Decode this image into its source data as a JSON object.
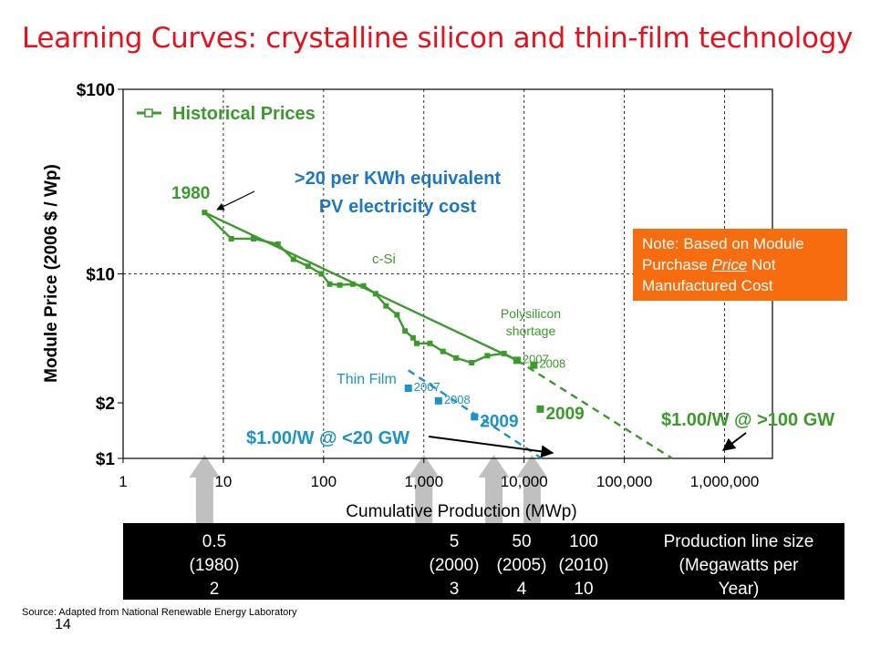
{
  "title": "Learning Curves: crystalline silicon and thin-film technology",
  "note": {
    "line1": "Note: Based on Module",
    "line2_pre": "Purchase ",
    "line2_em": "Price",
    "line2_post": " Not",
    "line3": "Manufactured Cost"
  },
  "source": "Source: Adapted from National Renewable Energy Laboratory",
  "page_number": "14",
  "production_line": {
    "columns": [
      {
        "lines": [
          "0.5",
          "(1980)",
          "2"
        ]
      },
      {
        "lines": [
          "5",
          "(2000)",
          "3"
        ]
      },
      {
        "lines": [
          "50",
          "(2005)",
          "4"
        ]
      },
      {
        "lines": [
          "100",
          "(2010)",
          "10"
        ]
      }
    ],
    "caption": [
      "Production line size",
      "(Megawatts per",
      "Year)"
    ]
  },
  "chart_data": {
    "type": "line",
    "x_scale": "log",
    "y_scale": "log",
    "xlim": [
      1,
      3000000
    ],
    "ylim": [
      1,
      100
    ],
    "xlabel": "Cumulative Production (MWp)",
    "ylabel": "Module Price (2006 $ / Wp)",
    "x_ticks": [
      {
        "value": 1,
        "label": "1"
      },
      {
        "value": 10,
        "label": "10"
      },
      {
        "value": 100,
        "label": "100"
      },
      {
        "value": 1000,
        "label": "1,000"
      },
      {
        "value": 10000,
        "label": "10,000"
      },
      {
        "value": 100000,
        "label": "100,000"
      },
      {
        "value": 1000000,
        "label": "1,000,000"
      }
    ],
    "y_ticks": [
      {
        "value": 1,
        "label": "$1"
      },
      {
        "value": 2,
        "label": "$2"
      },
      {
        "value": 10,
        "label": "$10"
      },
      {
        "value": 100,
        "label": "$100"
      }
    ],
    "grid": "dashed at major ticks",
    "legend": {
      "position": "top-left",
      "entries": [
        "Historical Prices"
      ]
    },
    "colors": {
      "historical": "#3a9a2a",
      "thin_film": "#1a93c8",
      "title": "#e8101a",
      "note_bg": "#f76c0e",
      "arrow": "#c0c0c0"
    },
    "series": [
      {
        "name": "Historical Prices",
        "x": [
          6.5,
          12,
          20,
          35,
          50,
          70,
          95,
          115,
          145,
          195,
          250,
          330,
          420,
          540,
          650,
          780,
          850,
          1150,
          1550,
          2100,
          3000,
          4300,
          6300,
          8500
        ],
        "y": [
          21.5,
          15.5,
          15.5,
          14.5,
          12.0,
          11.0,
          10.0,
          8.8,
          8.7,
          8.8,
          8.6,
          7.8,
          6.7,
          6.0,
          4.9,
          4.5,
          4.2,
          4.2,
          3.8,
          3.5,
          3.3,
          3.6,
          3.7,
          3.4
        ]
      },
      {
        "name": "c-Si trend",
        "x": [
          6.5,
          8500
        ],
        "y": [
          21.5,
          3.4
        ]
      },
      {
        "name": "c-Si projection",
        "x": [
          8500,
          300000
        ],
        "y": [
          3.4,
          1.0
        ]
      },
      {
        "name": "Thin Film projection",
        "x": [
          700,
          15000
        ],
        "y": [
          3.0,
          1.0
        ]
      }
    ],
    "markers": [
      {
        "label": "2007",
        "x": 8500,
        "y": 3.4,
        "color": "#3a9a2a"
      },
      {
        "label": "2008",
        "x": 12500,
        "y": 3.2,
        "color": "#3a9a2a"
      },
      {
        "label": "2009",
        "x": 14500,
        "y": 1.85,
        "color": "#3a9a2a"
      },
      {
        "label": "2007",
        "x": 700,
        "y": 2.4,
        "color": "#1a93c8"
      },
      {
        "label": "2008",
        "x": 1400,
        "y": 2.05,
        "color": "#1a93c8"
      },
      {
        "label": "2009",
        "x": 3200,
        "y": 1.68,
        "color": "#1a93c8"
      }
    ],
    "annotations": {
      "year_1980": "1980",
      "kwh_line1": ">20 per KWh equivalent",
      "kwh_line2": "PV electricity cost",
      "csi": "c-Si",
      "poly1": "Polysilicon",
      "poly2": "shortage",
      "thin_film": "Thin Film",
      "tf_target": "$1.00/W @ <20 GW",
      "csi_target": "$1.00/W @ >100 GW"
    },
    "arrow_markers_at_x": [
      6.5,
      1000,
      5000,
      12000
    ]
  }
}
